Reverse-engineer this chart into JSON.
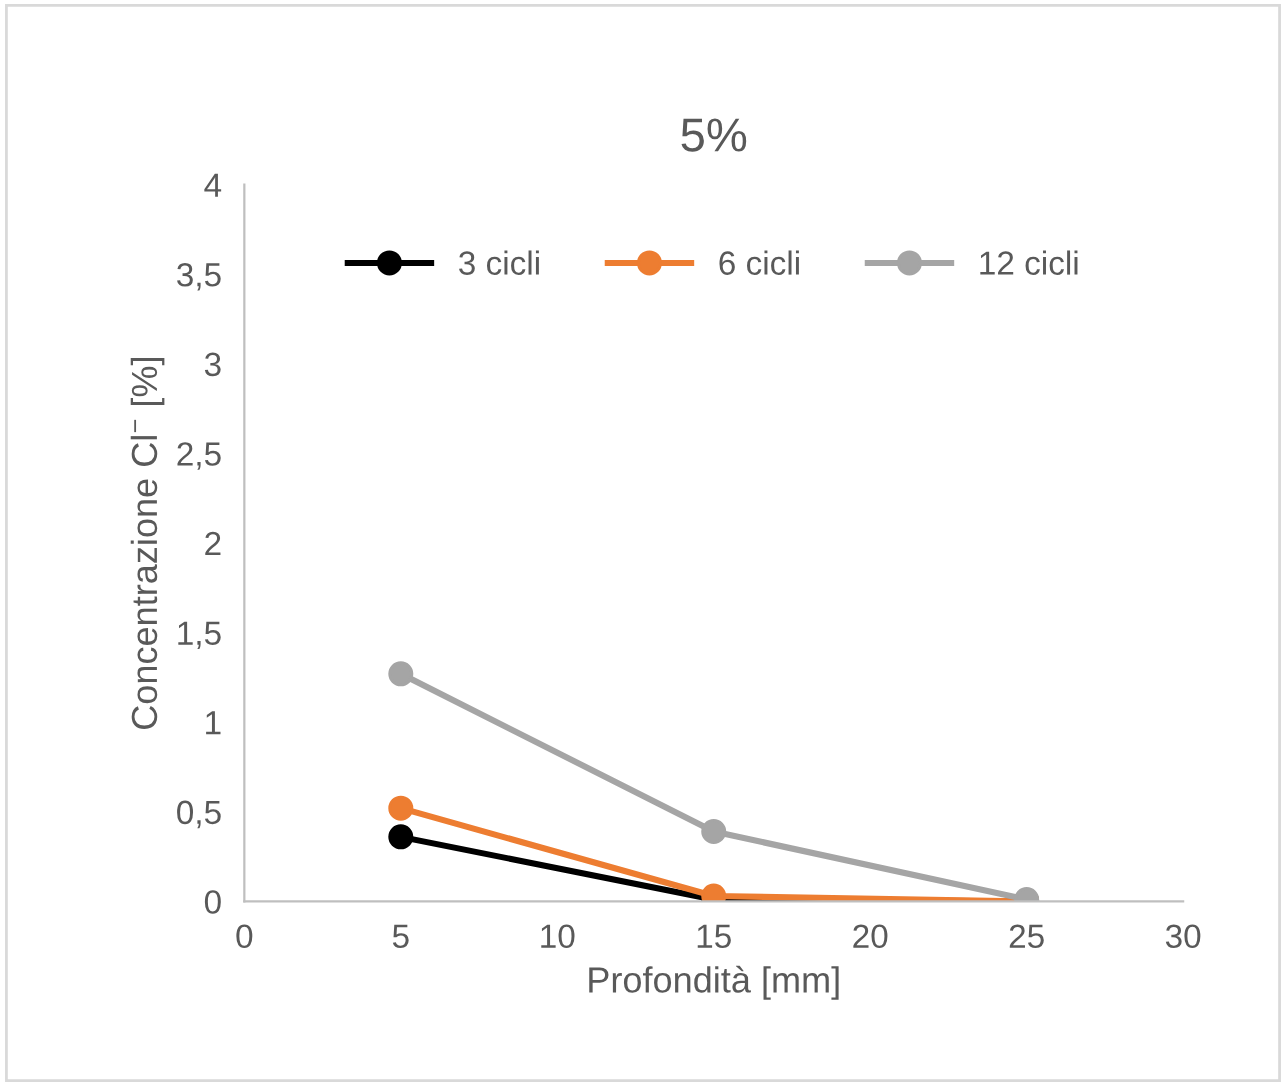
{
  "chart_data": {
    "type": "line",
    "title": "5%",
    "xlabel": "Profondità [mm]",
    "ylabel": "Concentrazione Cl$^{−}$ [%]",
    "x": [
      5,
      15,
      25
    ],
    "series": [
      {
        "name": "3 cicli",
        "color": "#000000",
        "values": [
          0.36,
          0.01,
          0.0
        ]
      },
      {
        "name": "6 cicli",
        "color": "#ed7d31",
        "values": [
          0.52,
          0.03,
          0.0
        ]
      },
      {
        "name": "12 cicli",
        "color": "#a5a5a5",
        "values": [
          1.27,
          0.39,
          0.01
        ]
      }
    ],
    "xlim": [
      0,
      30
    ],
    "xticks": [
      0,
      5,
      10,
      15,
      20,
      25,
      30
    ],
    "ylim": [
      0,
      4
    ],
    "yticks": [
      0,
      {
        "value": 0.5,
        "label": "0,5"
      },
      1,
      {
        "value": 1.5,
        "label": "1,5"
      },
      2,
      {
        "value": 2.5,
        "label": "2,5"
      },
      3,
      {
        "value": 3.5,
        "label": "3,5"
      },
      4
    ],
    "grid": false,
    "legend": "top",
    "marker": "circle",
    "line_style": "solid"
  }
}
